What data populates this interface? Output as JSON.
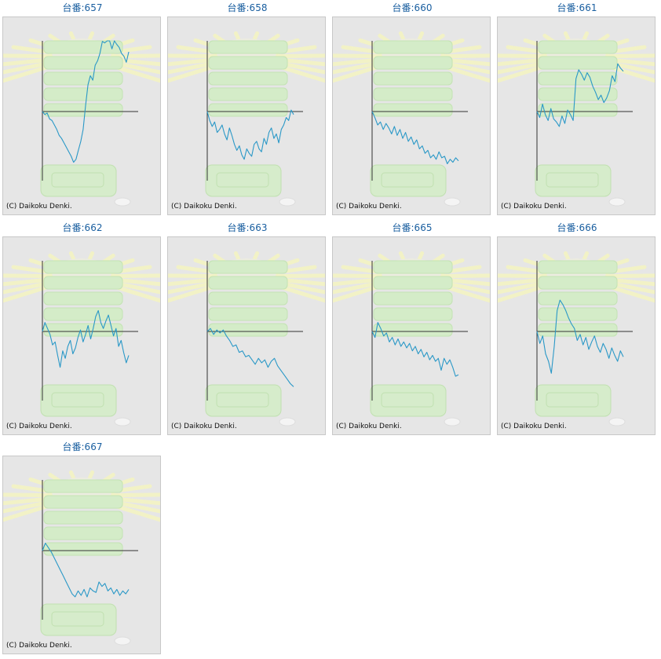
{
  "colors": {
    "title": "#1a5fa0",
    "line": "#2a98c7",
    "axis": "#333333",
    "panel_bg": "#e6e6e6",
    "border": "#c8c8c8"
  },
  "chart_data": [
    {
      "type": "line",
      "title": "台番:657",
      "copyright": "(C) Daikoku Denki.",
      "values": [
        0,
        -0.1,
        -0.05,
        -0.25,
        -0.3,
        -0.45,
        -0.6,
        -0.8,
        -0.9,
        -1.05,
        -1.2,
        -1.35,
        -1.5,
        -1.7,
        -1.6,
        -1.3,
        -1.0,
        -0.6,
        0.2,
        0.9,
        1.2,
        1.05,
        1.55,
        1.7,
        1.95,
        2.35,
        2.3,
        2.55,
        2.4,
        2.1,
        2.45,
        2.25,
        2.15,
        1.95,
        1.85,
        1.65,
        2.0
      ]
    },
    {
      "type": "line",
      "title": "台番:658",
      "copyright": "(C) Daikoku Denki.",
      "values": [
        0,
        -0.3,
        -0.5,
        -0.35,
        -0.7,
        -0.6,
        -0.45,
        -0.75,
        -0.95,
        -0.55,
        -0.8,
        -1.1,
        -1.3,
        -1.15,
        -1.45,
        -1.6,
        -1.25,
        -1.4,
        -1.5,
        -1.1,
        -1.0,
        -1.25,
        -1.35,
        -0.9,
        -1.1,
        -0.7,
        -0.55,
        -0.9,
        -0.75,
        -1.05,
        -0.6,
        -0.45,
        -0.2,
        -0.3,
        0.05,
        -0.1
      ]
    },
    {
      "type": "line",
      "title": "台番:660",
      "copyright": "(C) Daikoku Denki.",
      "values": [
        0,
        -0.2,
        -0.45,
        -0.35,
        -0.6,
        -0.4,
        -0.55,
        -0.75,
        -0.5,
        -0.8,
        -0.6,
        -0.9,
        -0.7,
        -1.0,
        -0.85,
        -1.1,
        -0.95,
        -1.25,
        -1.15,
        -1.4,
        -1.3,
        -1.55,
        -1.45,
        -1.6,
        -1.35,
        -1.55,
        -1.5,
        -1.75,
        -1.6,
        -1.7,
        -1.55,
        -1.65
      ]
    },
    {
      "type": "line",
      "title": "台番:661",
      "copyright": "(C) Daikoku Denki.",
      "values": [
        0,
        -0.2,
        0.25,
        -0.1,
        -0.3,
        0.1,
        -0.25,
        -0.35,
        -0.5,
        -0.15,
        -0.4,
        0.05,
        -0.1,
        -0.3,
        1.1,
        1.4,
        1.25,
        1.05,
        1.3,
        1.15,
        0.85,
        0.65,
        0.4,
        0.55,
        0.3,
        0.45,
        0.7,
        1.2,
        1.0,
        1.6,
        1.45,
        1.35
      ]
    },
    {
      "type": "line",
      "title": "台番:662",
      "copyright": "(C) Daikoku Denki.",
      "values": [
        0,
        0.3,
        0.1,
        -0.1,
        -0.45,
        -0.35,
        -0.8,
        -1.2,
        -0.65,
        -0.9,
        -0.5,
        -0.3,
        -0.75,
        -0.55,
        -0.2,
        0.05,
        -0.35,
        -0.1,
        0.2,
        -0.25,
        0.1,
        0.5,
        0.7,
        0.3,
        0.1,
        0.35,
        0.55,
        0.2,
        -0.15,
        0.1,
        -0.5,
        -0.3,
        -0.7,
        -1.05,
        -0.8
      ]
    },
    {
      "type": "line",
      "title": "台番:663",
      "copyright": "(C) Daikoku Denki.",
      "values": [
        0,
        0.1,
        -0.1,
        0.05,
        -0.05,
        0.05,
        -0.15,
        -0.3,
        -0.5,
        -0.45,
        -0.7,
        -0.65,
        -0.85,
        -0.8,
        -0.95,
        -1.1,
        -0.9,
        -1.05,
        -0.95,
        -1.2,
        -1.0,
        -0.9,
        -1.15,
        -1.3,
        -1.45,
        -1.6,
        -1.75,
        -1.85
      ]
    },
    {
      "type": "line",
      "title": "台番:665",
      "copyright": "(C) Daikoku Denki.",
      "values": [
        0,
        -0.2,
        0.3,
        0.1,
        -0.15,
        -0.05,
        -0.35,
        -0.2,
        -0.45,
        -0.25,
        -0.5,
        -0.35,
        -0.55,
        -0.4,
        -0.65,
        -0.5,
        -0.75,
        -0.6,
        -0.85,
        -0.7,
        -0.95,
        -0.8,
        -1.0,
        -0.9,
        -1.3,
        -0.9,
        -1.1,
        -0.95,
        -1.2,
        -1.5,
        -1.45
      ]
    },
    {
      "type": "line",
      "title": "台番:666",
      "copyright": "(C) Daikoku Denki.",
      "values": [
        0,
        -0.4,
        -0.15,
        -0.75,
        -1.0,
        -1.4,
        -0.5,
        0.7,
        1.05,
        0.9,
        0.7,
        0.45,
        0.25,
        0.1,
        -0.3,
        -0.1,
        -0.45,
        -0.2,
        -0.6,
        -0.35,
        -0.15,
        -0.5,
        -0.7,
        -0.4,
        -0.6,
        -0.9,
        -0.55,
        -0.8,
        -1.0,
        -0.65,
        -0.85
      ]
    },
    {
      "type": "line",
      "title": "台番:667",
      "copyright": "(C) Daikoku Denki.",
      "values": [
        0,
        0.25,
        0.1,
        -0.05,
        -0.25,
        -0.45,
        -0.65,
        -0.85,
        -1.05,
        -1.25,
        -1.45,
        -1.55,
        -1.35,
        -1.5,
        -1.3,
        -1.55,
        -1.25,
        -1.35,
        -1.4,
        -1.05,
        -1.2,
        -1.1,
        -1.35,
        -1.25,
        -1.45,
        -1.3,
        -1.5,
        -1.35,
        -1.45,
        -1.3
      ]
    }
  ]
}
